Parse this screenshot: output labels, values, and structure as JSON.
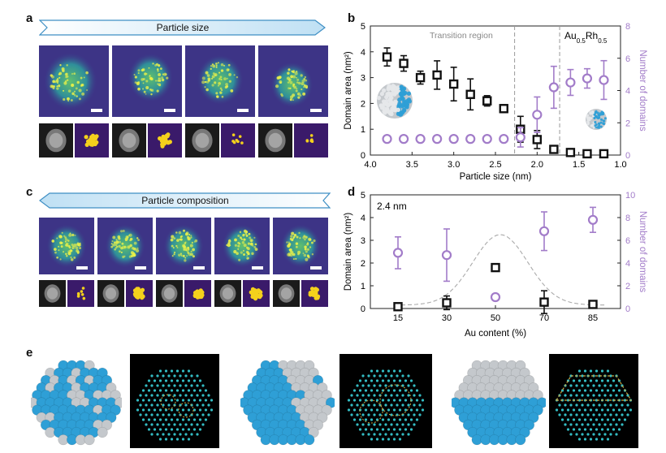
{
  "panel_letters": {
    "a": "a",
    "b": "b",
    "c": "c",
    "d": "d",
    "e": "e"
  },
  "panel_a": {
    "banner": "Particle size"
  },
  "panel_c": {
    "banner": "Particle composition"
  },
  "colors": {
    "black_series": "#111111",
    "purple_series": "#a27cc9",
    "banner_fill": "#cbe6f6",
    "banner_stroke": "#3f8fc4",
    "atom_blue": "#2e9fd6",
    "atom_grey": "#c4c8cc",
    "image_bg": "#3b2a78"
  },
  "chart_data": [
    {
      "type": "scatter",
      "xlabel": "Particle size (nm)",
      "ylabel_left": "Domain area (nm²)",
      "ylabel_right": "Number of domains",
      "xlim": [
        4.0,
        1.0
      ],
      "ylim_left": [
        0,
        5
      ],
      "ylim_right": [
        0,
        8
      ],
      "x_ticks": [
        "4.0",
        "3.5",
        "3.0",
        "2.5",
        "2.0",
        "1.5",
        "1.0"
      ],
      "y_left_ticks": [
        "0",
        "1",
        "2",
        "3",
        "4",
        "5"
      ],
      "y_right_ticks": [
        "0",
        "2",
        "4",
        "6",
        "8"
      ],
      "annotations": {
        "transition": "Transition region",
        "composition": "Au0.5Rh0.5"
      },
      "vlines_x": [
        2.27,
        1.73
      ],
      "series": [
        {
          "axis": "left",
          "marker": "square",
          "x": [
            3.8,
            3.6,
            3.4,
            3.2,
            3.0,
            2.8,
            2.6,
            2.4,
            2.2,
            2.0,
            1.8,
            1.6,
            1.4,
            1.2
          ],
          "y": [
            3.8,
            3.55,
            3.0,
            3.1,
            2.75,
            2.35,
            2.1,
            1.8,
            1.0,
            0.6,
            0.22,
            0.1,
            0.05,
            0.05
          ],
          "err": [
            0.35,
            0.3,
            0.25,
            0.55,
            0.65,
            0.6,
            0.2,
            0.15,
            0.5,
            0.35,
            0.12,
            0.08,
            0.05,
            0.05
          ]
        },
        {
          "axis": "right",
          "marker": "circle",
          "x": [
            3.8,
            3.6,
            3.4,
            3.2,
            3.0,
            2.8,
            2.6,
            2.4,
            2.2,
            2.0,
            1.8,
            1.6,
            1.4,
            1.2
          ],
          "y": [
            1.0,
            1.0,
            1.0,
            1.0,
            1.0,
            1.0,
            1.0,
            1.0,
            1.1,
            2.5,
            4.2,
            4.5,
            4.75,
            4.65
          ],
          "err": [
            0,
            0,
            0,
            0,
            0,
            0,
            0,
            0,
            0.6,
            1.1,
            1.3,
            0.8,
            0.6,
            1.2
          ]
        }
      ]
    },
    {
      "type": "scatter",
      "xlabel": "Au content (%)",
      "ylabel_left": "Domain area (nm²)",
      "ylabel_right": "Number of domains",
      "categories": [
        "15",
        "30",
        "50",
        "70",
        "85"
      ],
      "ylim_left": [
        0,
        5
      ],
      "ylim_right": [
        0,
        10
      ],
      "y_left_ticks": [
        "0",
        "1",
        "2",
        "3",
        "4",
        "5"
      ],
      "y_right_ticks": [
        "0",
        "2",
        "4",
        "6",
        "8",
        "10"
      ],
      "annotation": "2.4 nm",
      "series": [
        {
          "axis": "left",
          "marker": "square",
          "x": [
            15,
            30,
            50,
            70,
            85
          ],
          "y": [
            0.08,
            0.25,
            1.8,
            0.28,
            0.18
          ],
          "err": [
            0,
            0.3,
            0,
            0.5,
            0
          ]
        },
        {
          "axis": "right",
          "marker": "circle",
          "x": [
            15,
            30,
            50,
            70,
            85
          ],
          "y": [
            4.9,
            4.7,
            1.0,
            6.8,
            7.8
          ],
          "err": [
            1.4,
            2.3,
            0,
            1.7,
            1.1
          ]
        }
      ]
    }
  ]
}
